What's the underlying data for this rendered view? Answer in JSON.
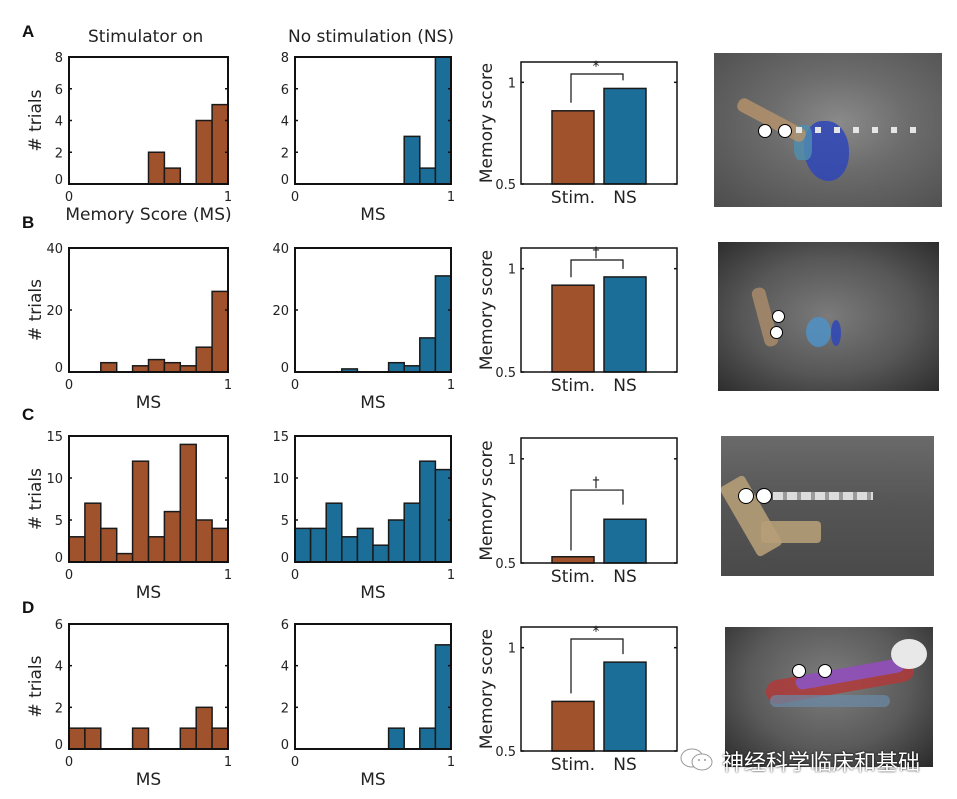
{
  "column_titles": {
    "stim": "Stimulator on",
    "ns": "No stimulation (NS)"
  },
  "colors": {
    "stim": "#A0522D",
    "ns": "#1A6E97",
    "axis": "#111111"
  },
  "watermark": {
    "text": "神经科学临床和基础",
    "icon": "wechat-icon"
  },
  "chart_data": [
    {
      "panel": "A",
      "type": "bar",
      "subtype": "histogram",
      "condition": "Stimulator on",
      "bin_edges": [
        0,
        0.1,
        0.2,
        0.3,
        0.4,
        0.5,
        0.6,
        0.7,
        0.8,
        0.9,
        1.0
      ],
      "values": [
        0,
        0,
        0,
        0,
        0,
        2,
        1,
        0,
        4,
        5
      ],
      "xlabel": "Memory Score (MS)",
      "ylabel": "# trials",
      "xlim": [
        0,
        1
      ],
      "ylim": [
        0,
        8
      ],
      "yticks": [
        0,
        2,
        4,
        6,
        8
      ],
      "xticks": [
        0,
        1
      ]
    },
    {
      "panel": "A",
      "type": "bar",
      "subtype": "histogram",
      "condition": "No stimulation (NS)",
      "bin_edges": [
        0,
        0.1,
        0.2,
        0.3,
        0.4,
        0.5,
        0.6,
        0.7,
        0.8,
        0.9,
        1.0
      ],
      "values": [
        0,
        0,
        0,
        0,
        0,
        0,
        0,
        3,
        1,
        8
      ],
      "xlabel": "MS",
      "ylabel": "",
      "xlim": [
        0,
        1
      ],
      "ylim": [
        0,
        8
      ],
      "yticks": [
        0,
        2,
        4,
        6,
        8
      ],
      "xticks": [
        0,
        1
      ]
    },
    {
      "panel": "A",
      "type": "bar",
      "categories": [
        "Stim.",
        "NS"
      ],
      "values": [
        0.86,
        0.97
      ],
      "ylabel": "Memory score",
      "ylim": [
        0.5,
        1.1
      ],
      "yticks": [
        0.5,
        1
      ],
      "significance": "*"
    },
    {
      "panel": "B",
      "type": "bar",
      "subtype": "histogram",
      "condition": "Stimulator on",
      "bin_edges": [
        0,
        0.1,
        0.2,
        0.3,
        0.4,
        0.5,
        0.6,
        0.7,
        0.8,
        0.9,
        1.0
      ],
      "values": [
        0,
        0,
        3,
        0,
        2,
        4,
        3,
        2,
        8,
        26
      ],
      "xlabel": "MS",
      "ylabel": "# trials",
      "xlim": [
        0,
        1
      ],
      "ylim": [
        0,
        40
      ],
      "yticks": [
        0,
        20,
        40
      ],
      "xticks": [
        0,
        1
      ]
    },
    {
      "panel": "B",
      "type": "bar",
      "subtype": "histogram",
      "condition": "No stimulation (NS)",
      "bin_edges": [
        0,
        0.1,
        0.2,
        0.3,
        0.4,
        0.5,
        0.6,
        0.7,
        0.8,
        0.9,
        1.0
      ],
      "values": [
        0,
        0,
        0,
        1,
        0,
        0,
        3,
        2,
        11,
        31
      ],
      "xlabel": "MS",
      "ylabel": "",
      "xlim": [
        0,
        1
      ],
      "ylim": [
        0,
        40
      ],
      "yticks": [
        0,
        20,
        40
      ],
      "xticks": [
        0,
        1
      ]
    },
    {
      "panel": "B",
      "type": "bar",
      "categories": [
        "Stim.",
        "NS"
      ],
      "values": [
        0.92,
        0.96
      ],
      "ylabel": "Memory score",
      "ylim": [
        0.5,
        1.1
      ],
      "yticks": [
        0.5,
        1
      ],
      "significance": "†"
    },
    {
      "panel": "C",
      "type": "bar",
      "subtype": "histogram",
      "condition": "Stimulator on",
      "bin_edges": [
        0,
        0.1,
        0.2,
        0.3,
        0.4,
        0.5,
        0.6,
        0.7,
        0.8,
        0.9,
        1.0
      ],
      "values": [
        3,
        7,
        4,
        1,
        12,
        3,
        6,
        14,
        5,
        4
      ],
      "xlabel": "MS",
      "ylabel": "# trials",
      "xlim": [
        0,
        1
      ],
      "ylim": [
        0,
        15
      ],
      "yticks": [
        0,
        5,
        10,
        15
      ],
      "xticks": [
        0,
        1
      ]
    },
    {
      "panel": "C",
      "type": "bar",
      "subtype": "histogram",
      "condition": "No stimulation (NS)",
      "bin_edges": [
        0,
        0.1,
        0.2,
        0.3,
        0.4,
        0.5,
        0.6,
        0.7,
        0.8,
        0.9,
        1.0
      ],
      "values": [
        4,
        4,
        7,
        3,
        4,
        2,
        5,
        7,
        12,
        11
      ],
      "xlabel": "MS",
      "ylabel": "",
      "xlim": [
        0,
        1
      ],
      "ylim": [
        0,
        15
      ],
      "yticks": [
        0,
        5,
        10,
        15
      ],
      "xticks": [
        0,
        1
      ]
    },
    {
      "panel": "C",
      "type": "bar",
      "categories": [
        "Stim.",
        "NS"
      ],
      "values": [
        0.53,
        0.71
      ],
      "ylabel": "Memory score",
      "ylim": [
        0.5,
        1.1
      ],
      "yticks": [
        0.5,
        1
      ],
      "significance": "†"
    },
    {
      "panel": "D",
      "type": "bar",
      "subtype": "histogram",
      "condition": "Stimulator on",
      "bin_edges": [
        0,
        0.1,
        0.2,
        0.3,
        0.4,
        0.5,
        0.6,
        0.7,
        0.8,
        0.9,
        1.0
      ],
      "values": [
        1,
        1,
        0,
        0,
        1,
        0,
        0,
        1,
        2,
        1
      ],
      "xlabel": "MS",
      "ylabel": "# trials",
      "xlim": [
        0,
        1
      ],
      "ylim": [
        0,
        6
      ],
      "yticks": [
        0,
        2,
        4,
        6
      ],
      "xticks": [
        0,
        1
      ]
    },
    {
      "panel": "D",
      "type": "bar",
      "subtype": "histogram",
      "condition": "No stimulation (NS)",
      "bin_edges": [
        0,
        0.1,
        0.2,
        0.3,
        0.4,
        0.5,
        0.6,
        0.7,
        0.8,
        0.9,
        1.0
      ],
      "values": [
        0,
        0,
        0,
        0,
        0,
        0,
        1,
        0,
        1,
        5
      ],
      "xlabel": "MS",
      "ylabel": "",
      "xlim": [
        0,
        1
      ],
      "ylim": [
        0,
        6
      ],
      "yticks": [
        0,
        2,
        4,
        6
      ],
      "xticks": [
        0,
        1
      ]
    },
    {
      "panel": "D",
      "type": "bar",
      "categories": [
        "Stim.",
        "NS"
      ],
      "values": [
        0.74,
        0.93
      ],
      "ylabel": "Memory score",
      "ylim": [
        0.5,
        1.1
      ],
      "yticks": [
        0.5,
        1
      ],
      "significance": "*"
    }
  ]
}
